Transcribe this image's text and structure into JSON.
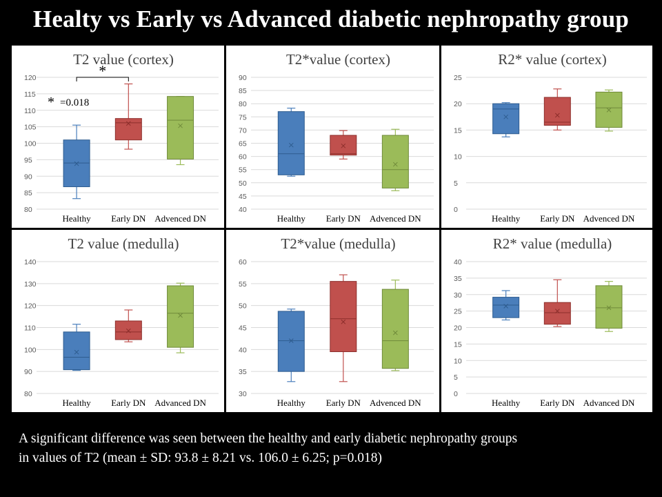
{
  "slide": {
    "title": "Healty vs Early vs Advanced diabetic nephropathy group",
    "caption_line1": "A significant difference was seen between the healthy and early diabetic nephropathy groups",
    "caption_line2": "in values of T2 (mean ± SD: 93.8 ± 8.21 vs. 106.0 ± 6.25; p=0.018)"
  },
  "colors": {
    "healthy": "#4a7ebb",
    "healthy_edge": "#2e5c8f",
    "early": "#c0504d",
    "early_edge": "#8c2e2b",
    "advanced": "#9bbb59",
    "advanced_edge": "#6f8a3a",
    "grid": "#d9d9d9"
  },
  "chart_data": [
    {
      "type": "boxplot",
      "title": "T2 value (cortex)",
      "categories": [
        "Healthy",
        "Early DN",
        "Advenced DN"
      ],
      "ylim": [
        80,
        120
      ],
      "yticks": [
        80,
        85,
        90,
        95,
        100,
        105,
        110,
        115,
        120
      ],
      "boxes": [
        {
          "min": 83.2,
          "q1": 86.8,
          "median": 94.0,
          "q3": 101.0,
          "max": 105.5,
          "mean": 93.8
        },
        {
          "min": 98.2,
          "q1": 101.0,
          "median": 106.2,
          "q3": 107.5,
          "max": 118.0,
          "mean": 106.0
        },
        {
          "min": 93.5,
          "q1": 95.2,
          "median": 107.0,
          "q3": 114.2,
          "max": 114.2,
          "mean": 105.3
        }
      ],
      "annotations": {
        "bracket_star": "*",
        "legend_star": "*",
        "legend_text": "=0.018"
      }
    },
    {
      "type": "boxplot",
      "title": "T2*value (cortex)",
      "categories": [
        "Healthy",
        "Early DN",
        "Advenced DN"
      ],
      "ylim": [
        40,
        90
      ],
      "yticks": [
        40,
        45,
        50,
        55,
        60,
        65,
        70,
        75,
        80,
        85,
        90
      ],
      "boxes": [
        {
          "min": 52.5,
          "q1": 53.0,
          "median": 61.0,
          "q3": 77.0,
          "max": 78.3,
          "mean": 64.3
        },
        {
          "min": 59.0,
          "q1": 60.5,
          "median": 61.0,
          "q3": 68.0,
          "max": 69.8,
          "mean": 64.0
        },
        {
          "min": 47.0,
          "q1": 48.0,
          "median": 55.0,
          "q3": 68.0,
          "max": 70.3,
          "mean": 57.0
        }
      ]
    },
    {
      "type": "boxplot",
      "title": "R2* value (cortex)",
      "categories": [
        "Healthy",
        "Early DN",
        "Advenced DN"
      ],
      "ylim": [
        0,
        25
      ],
      "yticks": [
        0,
        5,
        10,
        15,
        20,
        25
      ],
      "boxes": [
        {
          "min": 13.7,
          "q1": 14.3,
          "median": 19.0,
          "q3": 20.0,
          "max": 20.2,
          "mean": 17.5
        },
        {
          "min": 15.0,
          "q1": 15.9,
          "median": 16.5,
          "q3": 21.2,
          "max": 22.8,
          "mean": 17.8
        },
        {
          "min": 14.8,
          "q1": 15.5,
          "median": 19.2,
          "q3": 22.2,
          "max": 22.6,
          "mean": 18.8
        }
      ]
    },
    {
      "type": "boxplot",
      "title": "T2 value (medulla)",
      "categories": [
        "Healthy",
        "Early DN",
        "Advanced DN"
      ],
      "ylim": [
        80,
        140
      ],
      "yticks": [
        80,
        90,
        100,
        110,
        120,
        130,
        140
      ],
      "boxes": [
        {
          "min": 90.5,
          "q1": 90.8,
          "median": 96.5,
          "q3": 108.0,
          "max": 111.5,
          "mean": 98.8
        },
        {
          "min": 103.5,
          "q1": 104.5,
          "median": 108.0,
          "q3": 113.0,
          "max": 118.0,
          "mean": 108.5
        },
        {
          "min": 98.5,
          "q1": 101.0,
          "median": 116.5,
          "q3": 129.0,
          "max": 130.2,
          "mean": 115.5
        }
      ]
    },
    {
      "type": "boxplot",
      "title": "T2*value (medulla)",
      "categories": [
        "Healthy",
        "Early DN",
        "Advenced DN"
      ],
      "ylim": [
        30,
        60
      ],
      "yticks": [
        30,
        35,
        40,
        45,
        50,
        55,
        60
      ],
      "boxes": [
        {
          "min": 32.7,
          "q1": 35.0,
          "median": 42.0,
          "q3": 48.7,
          "max": 49.2,
          "mean": 42.0
        },
        {
          "min": 32.7,
          "q1": 39.5,
          "median": 47.0,
          "q3": 55.5,
          "max": 57.0,
          "mean": 46.3
        },
        {
          "min": 35.2,
          "q1": 35.7,
          "median": 42.0,
          "q3": 53.7,
          "max": 55.8,
          "mean": 43.8
        }
      ]
    },
    {
      "type": "boxplot",
      "title": "R2* value (medulla)",
      "categories": [
        "Healthy",
        "Early DN",
        "Advanced DN"
      ],
      "ylim": [
        0,
        40
      ],
      "yticks": [
        0,
        5,
        10,
        15,
        20,
        25,
        30,
        35,
        40
      ],
      "boxes": [
        {
          "min": 22.3,
          "q1": 23.0,
          "median": 26.8,
          "q3": 29.2,
          "max": 31.2,
          "mean": 26.5
        },
        {
          "min": 20.3,
          "q1": 21.0,
          "median": 24.5,
          "q3": 27.6,
          "max": 34.5,
          "mean": 25.0
        },
        {
          "min": 18.8,
          "q1": 19.8,
          "median": 26.0,
          "q3": 32.7,
          "max": 34.0,
          "mean": 26.0
        }
      ]
    }
  ]
}
